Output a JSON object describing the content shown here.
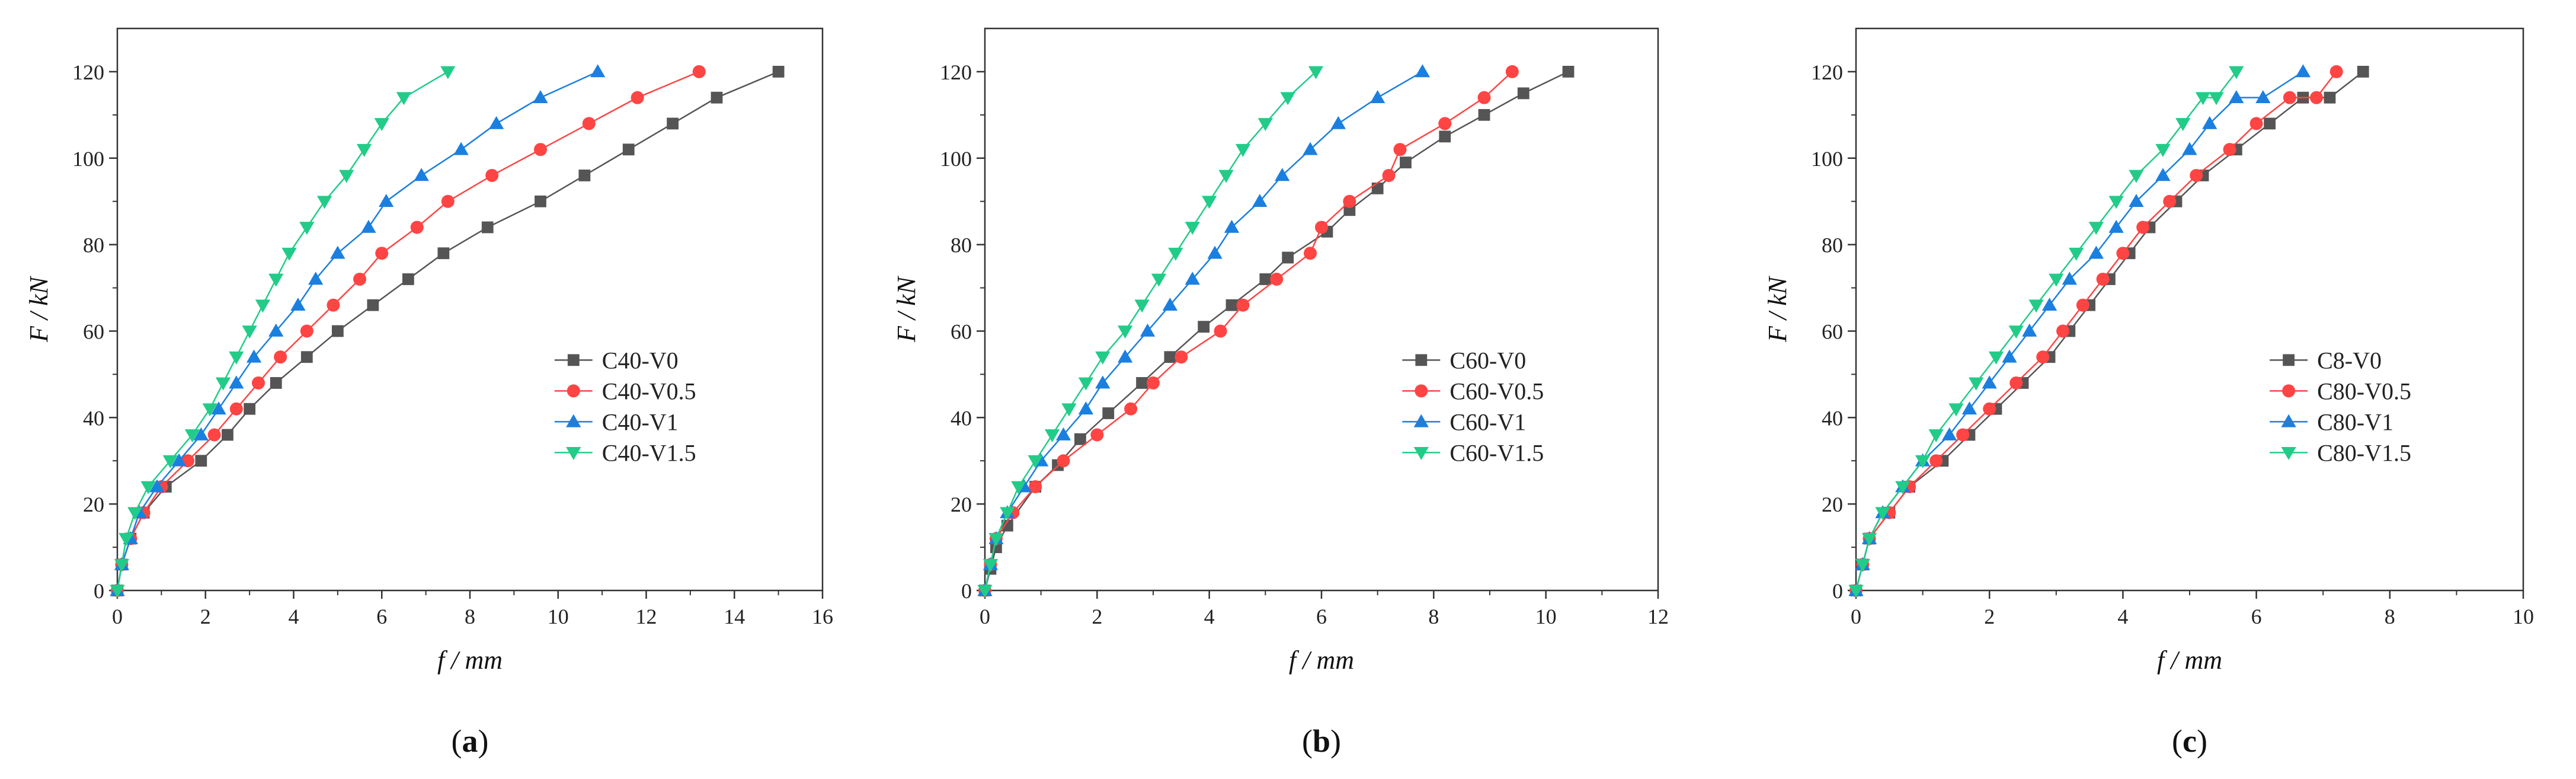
{
  "figure": {
    "colors": {
      "s0": "#555555",
      "s1": "#ff4444",
      "s2": "#1b7fe0",
      "s3": "#22cc88"
    },
    "markers": [
      "square",
      "circle",
      "triangle-up",
      "triangle-down"
    ]
  },
  "chart_data": [
    {
      "type": "line",
      "caption_open": "(",
      "caption_letter": "a",
      "caption_close": ")",
      "xlabel_var": "f",
      "xlabel_sep": " / ",
      "xlabel_unit": "mm",
      "ylabel_var": "F",
      "ylabel_sep": " / ",
      "ylabel_unit": "kN",
      "xlim": [
        0,
        16
      ],
      "ylim": [
        0,
        130
      ],
      "xticks": [
        0,
        2,
        4,
        6,
        8,
        10,
        12,
        14,
        16
      ],
      "yticks": [
        0,
        20,
        40,
        60,
        80,
        100,
        120
      ],
      "legend_position": "center-right",
      "series": [
        {
          "name": "C40-V0",
          "x": [
            0,
            0.1,
            0.3,
            0.6,
            1.1,
            1.9,
            2.5,
            3.0,
            3.6,
            4.3,
            5.0,
            5.8,
            6.6,
            7.4,
            8.4,
            9.6,
            10.6,
            11.6,
            12.6,
            13.6,
            15.0
          ],
          "y": [
            0,
            6,
            12,
            18,
            24,
            30,
            36,
            42,
            48,
            54,
            60,
            66,
            72,
            78,
            84,
            90,
            96,
            102,
            108,
            114,
            120
          ]
        },
        {
          "name": "C40-V0.5",
          "x": [
            0,
            0.1,
            0.3,
            0.6,
            1.0,
            1.6,
            2.2,
            2.7,
            3.2,
            3.7,
            4.3,
            4.9,
            5.5,
            6.0,
            6.8,
            7.5,
            8.5,
            9.6,
            10.7,
            11.8,
            13.2
          ],
          "y": [
            0,
            6,
            12,
            18,
            24,
            30,
            36,
            42,
            48,
            54,
            60,
            66,
            72,
            78,
            84,
            90,
            96,
            102,
            108,
            114,
            120
          ]
        },
        {
          "name": "C40-V1",
          "x": [
            0,
            0.1,
            0.3,
            0.5,
            0.9,
            1.4,
            1.9,
            2.3,
            2.7,
            3.1,
            3.6,
            4.1,
            4.5,
            5.0,
            5.7,
            6.1,
            6.9,
            7.8,
            8.6,
            9.6,
            10.9
          ],
          "y": [
            0,
            6,
            12,
            18,
            24,
            30,
            36,
            42,
            48,
            54,
            60,
            66,
            72,
            78,
            84,
            90,
            96,
            102,
            108,
            114,
            120
          ]
        },
        {
          "name": "C40-V1.5",
          "x": [
            0,
            0.1,
            0.2,
            0.4,
            0.7,
            1.2,
            1.7,
            2.1,
            2.4,
            2.7,
            3.0,
            3.3,
            3.6,
            3.9,
            4.3,
            4.7,
            5.2,
            5.6,
            6.0,
            6.5,
            7.5
          ],
          "y": [
            0,
            6,
            12,
            18,
            24,
            30,
            36,
            42,
            48,
            54,
            60,
            66,
            72,
            78,
            84,
            90,
            96,
            102,
            108,
            114,
            120
          ]
        }
      ]
    },
    {
      "type": "line",
      "caption_open": "(",
      "caption_letter": "b",
      "caption_close": ")",
      "xlabel_var": "f",
      "xlabel_sep": " / ",
      "xlabel_unit": "mm",
      "ylabel_var": "F",
      "ylabel_sep": " / ",
      "ylabel_unit": "kN",
      "xlim": [
        0,
        12
      ],
      "ylim": [
        0,
        130
      ],
      "xticks": [
        0,
        2,
        4,
        6,
        8,
        10,
        12
      ],
      "yticks": [
        0,
        20,
        40,
        60,
        80,
        100,
        120
      ],
      "legend_position": "center-right",
      "series": [
        {
          "name": "C60-V0",
          "x": [
            0,
            0.1,
            0.2,
            0.4,
            0.9,
            1.3,
            1.7,
            2.2,
            2.8,
            3.3,
            3.9,
            4.4,
            5.0,
            5.4,
            6.1,
            6.5,
            7.0,
            7.5,
            8.2,
            8.9,
            9.6,
            10.4
          ],
          "y": [
            0,
            5,
            10,
            15,
            24,
            29,
            35,
            41,
            48,
            54,
            61,
            66,
            72,
            77,
            83,
            88,
            93,
            99,
            105,
            110,
            115,
            120
          ]
        },
        {
          "name": "C60-V0.5",
          "x": [
            0,
            0.1,
            0.2,
            0.5,
            0.9,
            1.4,
            2.0,
            2.6,
            3.0,
            3.5,
            4.2,
            4.6,
            5.2,
            5.8,
            6.0,
            6.5,
            7.2,
            7.4,
            8.2,
            8.9,
            9.4
          ],
          "y": [
            0,
            6,
            12,
            18,
            24,
            30,
            36,
            42,
            48,
            54,
            60,
            66,
            72,
            78,
            84,
            90,
            96,
            102,
            108,
            114,
            120
          ]
        },
        {
          "name": "C60-V1",
          "x": [
            0,
            0.1,
            0.2,
            0.4,
            0.7,
            1.0,
            1.4,
            1.8,
            2.1,
            2.5,
            2.9,
            3.3,
            3.7,
            4.1,
            4.4,
            4.9,
            5.3,
            5.8,
            6.3,
            7.0,
            7.8
          ],
          "y": [
            0,
            6,
            12,
            18,
            24,
            30,
            36,
            42,
            48,
            54,
            60,
            66,
            72,
            78,
            84,
            90,
            96,
            102,
            108,
            114,
            120
          ]
        },
        {
          "name": "C60-V1.5",
          "x": [
            0,
            0.1,
            0.2,
            0.4,
            0.6,
            0.9,
            1.2,
            1.5,
            1.8,
            2.1,
            2.5,
            2.8,
            3.1,
            3.4,
            3.7,
            4.0,
            4.3,
            4.6,
            5.0,
            5.4,
            5.9
          ],
          "y": [
            0,
            6,
            12,
            18,
            24,
            30,
            36,
            42,
            48,
            54,
            60,
            66,
            72,
            78,
            84,
            90,
            96,
            102,
            108,
            114,
            120
          ]
        }
      ]
    },
    {
      "type": "line",
      "caption_open": "(",
      "caption_letter": "c",
      "caption_close": ")",
      "xlabel_var": "f",
      "xlabel_sep": " / ",
      "xlabel_unit": "mm",
      "ylabel_var": "F",
      "ylabel_sep": " / ",
      "ylabel_unit": "kN",
      "xlim": [
        0,
        10
      ],
      "ylim": [
        0,
        130
      ],
      "xticks": [
        0,
        2,
        4,
        6,
        8,
        10
      ],
      "yticks": [
        0,
        20,
        40,
        60,
        80,
        100,
        120
      ],
      "legend_position": "center-right",
      "series": [
        {
          "name": "C8-V0",
          "x": [
            0,
            0.1,
            0.2,
            0.5,
            0.8,
            1.3,
            1.7,
            2.1,
            2.5,
            2.9,
            3.2,
            3.5,
            3.8,
            4.1,
            4.4,
            4.8,
            5.2,
            5.7,
            6.2,
            6.7,
            7.1,
            7.6
          ],
          "y": [
            0,
            6,
            12,
            18,
            24,
            30,
            36,
            42,
            48,
            54,
            60,
            66,
            72,
            78,
            84,
            90,
            96,
            102,
            108,
            114,
            114,
            120
          ]
        },
        {
          "name": "C80-V0.5",
          "x": [
            0,
            0.1,
            0.2,
            0.5,
            0.8,
            1.2,
            1.6,
            2.0,
            2.4,
            2.8,
            3.1,
            3.4,
            3.7,
            4.0,
            4.3,
            4.7,
            5.1,
            5.6,
            6.0,
            6.5,
            6.9,
            7.2
          ],
          "y": [
            0,
            6,
            12,
            18,
            24,
            30,
            36,
            42,
            48,
            54,
            60,
            66,
            72,
            78,
            84,
            90,
            96,
            102,
            108,
            114,
            114,
            120
          ]
        },
        {
          "name": "C80-V1",
          "x": [
            0,
            0.1,
            0.2,
            0.4,
            0.7,
            1.0,
            1.4,
            1.7,
            2.0,
            2.3,
            2.6,
            2.9,
            3.2,
            3.6,
            3.9,
            4.2,
            4.6,
            5.0,
            5.3,
            5.7,
            6.1,
            6.7
          ],
          "y": [
            0,
            6,
            12,
            18,
            24,
            30,
            36,
            42,
            48,
            54,
            60,
            66,
            72,
            78,
            84,
            90,
            96,
            102,
            108,
            114,
            114,
            120
          ]
        },
        {
          "name": "C80-V1.5",
          "x": [
            0,
            0.1,
            0.2,
            0.4,
            0.7,
            1.0,
            1.2,
            1.5,
            1.8,
            2.1,
            2.4,
            2.7,
            3.0,
            3.3,
            3.6,
            3.9,
            4.2,
            4.6,
            4.9,
            5.2,
            5.4,
            5.7
          ],
          "y": [
            0,
            6,
            12,
            18,
            24,
            30,
            36,
            42,
            48,
            54,
            60,
            66,
            72,
            78,
            84,
            90,
            96,
            102,
            108,
            114,
            114,
            120
          ]
        }
      ]
    }
  ]
}
